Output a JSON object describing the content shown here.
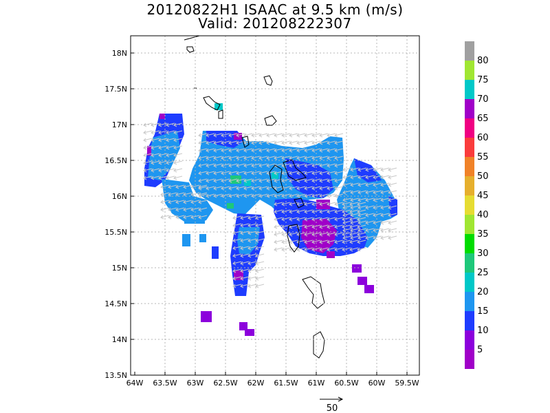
{
  "title": {
    "line1": "20120822H1 ISAAC at 9.5 km (m/s)",
    "line2": "Valid: 201208222307"
  },
  "axes": {
    "x_ticks": [
      "64W",
      "63.5W",
      "63W",
      "62.5W",
      "62W",
      "61.5W",
      "61W",
      "60.5W",
      "60W",
      "59.5W"
    ],
    "y_ticks": [
      "18N",
      "17.5N",
      "17N",
      "16.5N",
      "16N",
      "15.5N",
      "15N",
      "14.5N",
      "14N",
      "13.5N"
    ]
  },
  "colorbar": {
    "labels": [
      "80",
      "75",
      "70",
      "65",
      "60",
      "55",
      "50",
      "45",
      "40",
      "35",
      "30",
      "25",
      "20",
      "15",
      "10",
      "5"
    ],
    "colors": [
      "#a0a0a0",
      "#a0e632",
      "#00c8c8",
      "#a000c8",
      "#f00082",
      "#fa3c3c",
      "#f08228",
      "#e6af2d",
      "#e6dc32",
      "#a0e632",
      "#00dc00",
      "#1ec87a",
      "#00c8c8",
      "#1e96f0",
      "#1e3cff",
      "#8c00dc",
      "#a000c8"
    ]
  },
  "reference_vector": {
    "label": "50"
  }
}
